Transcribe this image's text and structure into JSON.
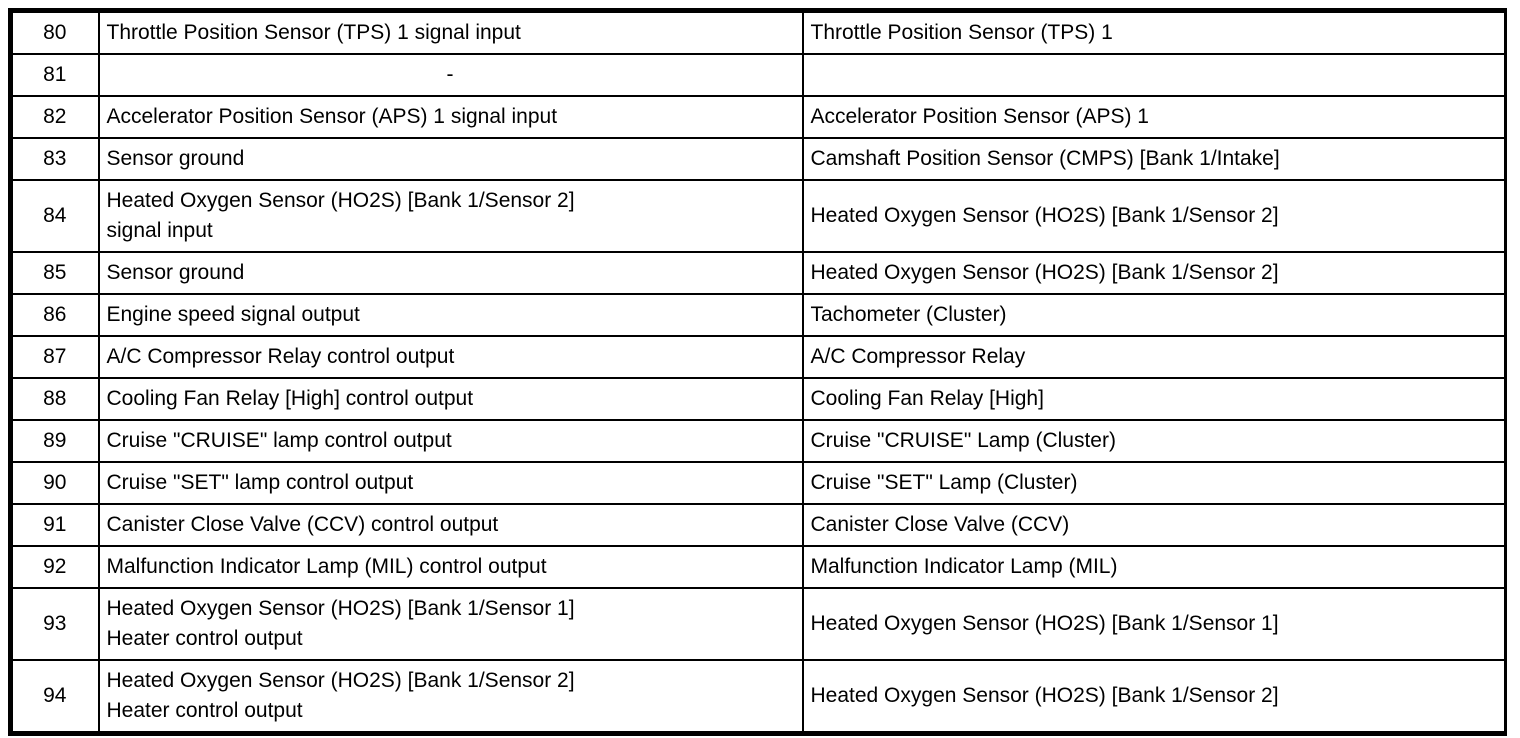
{
  "colors": {
    "paper": "#ffffff",
    "ink": "#000000"
  },
  "table": {
    "semantic": "ecm-connector-pinout",
    "columns": [
      "pin",
      "description",
      "connected_to"
    ],
    "rows": [
      {
        "pin": "80",
        "description": "Throttle Position Sensor (TPS) 1 signal input",
        "connected_to": "Throttle Position Sensor (TPS) 1"
      },
      {
        "pin": "81",
        "description": "-",
        "connected_to": ""
      },
      {
        "pin": "82",
        "description": "Accelerator Position Sensor (APS) 1 signal input",
        "connected_to": "Accelerator Position Sensor (APS) 1"
      },
      {
        "pin": "83",
        "description": "Sensor ground",
        "connected_to": "Camshaft Position Sensor (CMPS) [Bank 1/Intake]"
      },
      {
        "pin": "84",
        "description": "Heated Oxygen Sensor (HO2S) [Bank 1/Sensor 2]\nsignal input",
        "connected_to": "Heated Oxygen Sensor (HO2S) [Bank 1/Sensor 2]"
      },
      {
        "pin": "85",
        "description": "Sensor ground",
        "connected_to": "Heated Oxygen Sensor (HO2S) [Bank 1/Sensor 2]"
      },
      {
        "pin": "86",
        "description": "Engine speed signal output",
        "connected_to": "Tachometer (Cluster)"
      },
      {
        "pin": "87",
        "description": "A/C Compressor Relay control output",
        "connected_to": "A/C Compressor Relay"
      },
      {
        "pin": "88",
        "description": "Cooling Fan Relay [High] control output",
        "connected_to": "Cooling Fan Relay [High]"
      },
      {
        "pin": "89",
        "description": "Cruise \"CRUISE\" lamp control output",
        "connected_to": "Cruise \"CRUISE\" Lamp (Cluster)"
      },
      {
        "pin": "90",
        "description": "Cruise \"SET\" lamp control output",
        "connected_to": "Cruise \"SET\" Lamp (Cluster)"
      },
      {
        "pin": "91",
        "description": "Canister Close Valve (CCV) control output",
        "connected_to": "Canister Close Valve (CCV)"
      },
      {
        "pin": "92",
        "description": "Malfunction Indicator Lamp (MIL) control output",
        "connected_to": "Malfunction Indicator Lamp (MIL)"
      },
      {
        "pin": "93",
        "description": "Heated Oxygen Sensor (HO2S) [Bank 1/Sensor 1]\nHeater control output",
        "connected_to": "Heated Oxygen Sensor (HO2S) [Bank 1/Sensor 1]"
      },
      {
        "pin": "94",
        "description": "Heated Oxygen Sensor (HO2S) [Bank 1/Sensor 2]\nHeater control output",
        "connected_to": "Heated Oxygen Sensor (HO2S) [Bank 1/Sensor 2]"
      }
    ]
  }
}
